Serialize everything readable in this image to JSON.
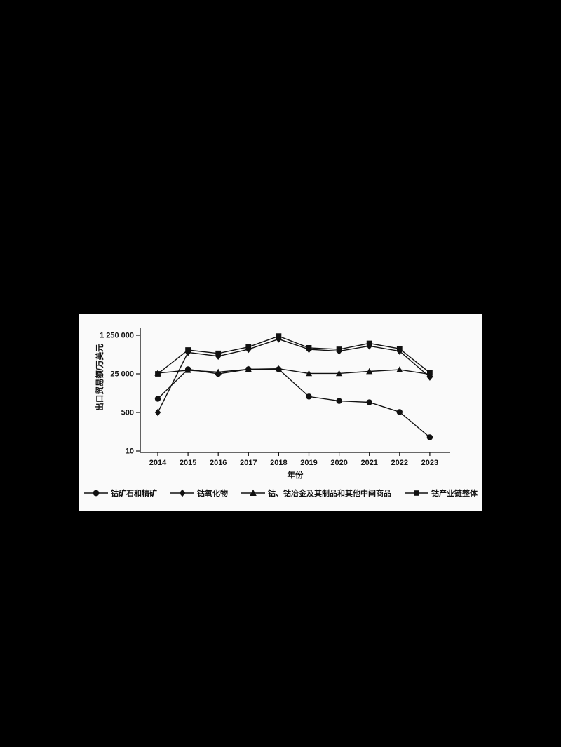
{
  "colors": {
    "background": "#000000",
    "panel": "#fafafa",
    "ink": "#111111"
  },
  "chart_data": {
    "type": "line",
    "title": "",
    "xlabel": "年份",
    "ylabel": "出口贸易额/万美元",
    "yscale": "log",
    "grid": false,
    "legend_position": "bottom",
    "x": [
      "2014",
      "2015",
      "2016",
      "2017",
      "2018",
      "2019",
      "2020",
      "2021",
      "2022",
      "2023"
    ],
    "yticks": [
      10,
      500,
      25000,
      1250000
    ],
    "ytick_labels": [
      "10",
      "500",
      "25 000",
      "1 250 000"
    ],
    "ylim": [
      10,
      2000000
    ],
    "series": [
      {
        "name": "钴矿石和精矿",
        "marker": "circle",
        "color": "#111111",
        "values": [
          2000,
          40000,
          25000,
          40000,
          40000,
          2500,
          1600,
          1400,
          520,
          40
        ]
      },
      {
        "name": "钴氧化物",
        "marker": "diamond",
        "color": "#111111",
        "values": [
          500,
          220000,
          150000,
          300000,
          850000,
          300000,
          250000,
          420000,
          250000,
          18000
        ]
      },
      {
        "name": "钴、钴冶金及其制品和其他中间商品",
        "marker": "triangle",
        "color": "#111111",
        "values": [
          27000,
          36000,
          30000,
          40000,
          42000,
          26000,
          26000,
          32000,
          38000,
          24000
        ]
      },
      {
        "name": "钴产业链整体",
        "marker": "square",
        "color": "#111111",
        "values": [
          25000,
          280000,
          200000,
          380000,
          1150000,
          350000,
          300000,
          550000,
          320000,
          28000
        ]
      }
    ]
  }
}
